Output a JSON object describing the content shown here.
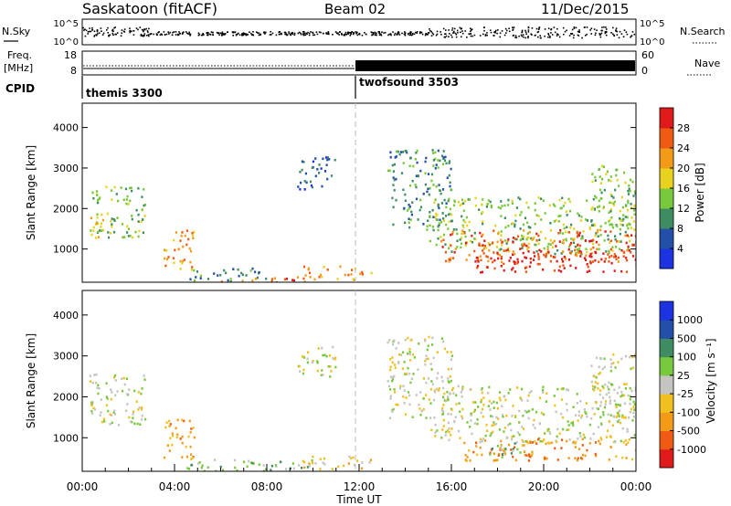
{
  "header": {
    "station": "Saskatoon (fitACF)",
    "beam": "Beam 02",
    "date": "11/Dec/2015"
  },
  "noise_panel": {
    "left_label": "N.Sky",
    "left_ticks": [
      "10^5",
      "10^0"
    ],
    "right_ticks": [
      "10^5",
      "10^0"
    ],
    "right_label": "N.Search"
  },
  "freq_panel": {
    "label_line1": "Freq.",
    "label_line2": "[MHz]",
    "left_ticks": [
      "18",
      "8"
    ],
    "right_ticks": [
      "60",
      "0"
    ],
    "right_label": "Nave"
  },
  "cpid": {
    "label": "CPID",
    "segments": [
      "themis 3300",
      "twofsound 3503"
    ]
  },
  "colors": {
    "power": [
      "#1d32e0",
      "#234fa8",
      "#3e8c61",
      "#77c83a",
      "#e8d21f",
      "#f39b17",
      "#f05a12",
      "#e01a1a"
    ],
    "velocity": [
      "#e01a1a",
      "#f05a12",
      "#f39b17",
      "#f0c020",
      "#c4c4c0",
      "#77c83a",
      "#3e8c61",
      "#234fa8",
      "#1d32e0"
    ]
  },
  "chart_data": [
    {
      "type": "heatmap",
      "name": "power",
      "ylabel": "Slant Range [km]",
      "ylim": [
        180,
        4600
      ],
      "yticks": [
        1000,
        2000,
        3000,
        4000
      ],
      "xlabel": "",
      "xlim_hours": [
        0,
        24
      ],
      "colorbar": {
        "label": "Power [dB]",
        "ticks": [
          "4",
          "8",
          "12",
          "16",
          "20",
          "24",
          "28"
        ]
      },
      "patches": [
        {
          "t": [
            0.3,
            2.7
          ],
          "r": [
            1300,
            2600
          ],
          "level": 3
        },
        {
          "t": [
            0.3,
            1.3
          ],
          "r": [
            1300,
            1800
          ],
          "level": 4
        },
        {
          "t": [
            3.5,
            4.9
          ],
          "r": [
            500,
            1500
          ],
          "level": 5
        },
        {
          "t": [
            4.5,
            8.0
          ],
          "r": [
            220,
            550
          ],
          "level": 2
        },
        {
          "t": [
            6.0,
            10.0
          ],
          "r": [
            200,
            350
          ],
          "level": 6
        },
        {
          "t": [
            9.5,
            12.5
          ],
          "r": [
            250,
            600
          ],
          "level": 5
        },
        {
          "t": [
            9.3,
            11.0
          ],
          "r": [
            2500,
            3300
          ],
          "level": 1
        },
        {
          "t": [
            13.2,
            16.0
          ],
          "r": [
            1500,
            3500
          ],
          "level": 2
        },
        {
          "t": [
            15.0,
            24.0
          ],
          "r": [
            900,
            2300
          ],
          "level": 3
        },
        {
          "t": [
            15.5,
            24.0
          ],
          "r": [
            700,
            1500
          ],
          "level": 6
        },
        {
          "t": [
            17.0,
            24.0
          ],
          "r": [
            450,
            1000
          ],
          "level": 7
        },
        {
          "t": [
            22.0,
            24.0
          ],
          "r": [
            1500,
            3100
          ],
          "level": 3
        }
      ]
    },
    {
      "type": "heatmap",
      "name": "velocity",
      "ylabel": "Slant Range [km]",
      "ylim": [
        180,
        4600
      ],
      "yticks": [
        1000,
        2000,
        3000,
        4000
      ],
      "xlabel": "Time UT",
      "xticks": [
        "00:00",
        "04:00",
        "08:00",
        "12:00",
        "16:00",
        "20:00",
        "00:00"
      ],
      "xlim_hours": [
        0,
        24
      ],
      "colorbar": {
        "label": "Velocity [m s⁻¹]",
        "ticks": [
          "1000",
          "500",
          "100",
          "25",
          "-25",
          "-100",
          "-500",
          "-1000"
        ]
      },
      "patches": [
        {
          "t": [
            0.3,
            2.7
          ],
          "r": [
            1300,
            2600
          ],
          "level": 4
        },
        {
          "t": [
            3.5,
            4.9
          ],
          "r": [
            500,
            1500
          ],
          "level": 2
        },
        {
          "t": [
            4.5,
            10.0
          ],
          "r": [
            200,
            500
          ],
          "level": 5
        },
        {
          "t": [
            9.5,
            12.5
          ],
          "r": [
            250,
            600
          ],
          "level": 3
        },
        {
          "t": [
            9.3,
            11.0
          ],
          "r": [
            2500,
            3300
          ],
          "level": 4
        },
        {
          "t": [
            13.2,
            16.0
          ],
          "r": [
            1500,
            3500
          ],
          "level": 4
        },
        {
          "t": [
            15.0,
            24.0
          ],
          "r": [
            900,
            2300
          ],
          "level": 4
        },
        {
          "t": [
            16.5,
            24.0
          ],
          "r": [
            450,
            1000
          ],
          "level": 2
        },
        {
          "t": [
            17.5,
            19.0
          ],
          "r": [
            500,
            900
          ],
          "level": 5
        },
        {
          "t": [
            22.0,
            24.0
          ],
          "r": [
            1500,
            3100
          ],
          "level": 4
        }
      ]
    }
  ]
}
